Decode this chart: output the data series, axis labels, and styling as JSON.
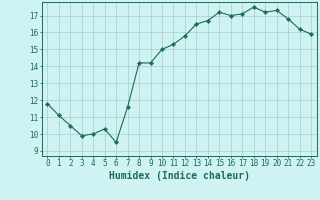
{
  "x": [
    0,
    1,
    2,
    3,
    4,
    5,
    6,
    7,
    8,
    9,
    10,
    11,
    12,
    13,
    14,
    15,
    16,
    17,
    18,
    19,
    20,
    21,
    22,
    23
  ],
  "y": [
    11.8,
    11.1,
    10.5,
    9.9,
    10.0,
    10.3,
    9.5,
    11.6,
    14.2,
    14.2,
    15.0,
    15.3,
    15.8,
    16.5,
    16.7,
    17.2,
    17.0,
    17.1,
    17.5,
    17.2,
    17.3,
    16.8,
    16.2,
    15.9
  ],
  "line_color": "#1a6b5a",
  "marker": "D",
  "marker_size": 2.2,
  "bg_color": "#cff2f2",
  "grid_color": "#aed4d4",
  "xlabel": "Humidex (Indice chaleur)",
  "xlim": [
    -0.5,
    23.5
  ],
  "ylim": [
    8.7,
    17.8
  ],
  "yticks": [
    9,
    10,
    11,
    12,
    13,
    14,
    15,
    16,
    17
  ],
  "xticks": [
    0,
    1,
    2,
    3,
    4,
    5,
    6,
    7,
    8,
    9,
    10,
    11,
    12,
    13,
    14,
    15,
    16,
    17,
    18,
    19,
    20,
    21,
    22,
    23
  ],
  "tick_fontsize": 5.5,
  "xlabel_fontsize": 7.0
}
